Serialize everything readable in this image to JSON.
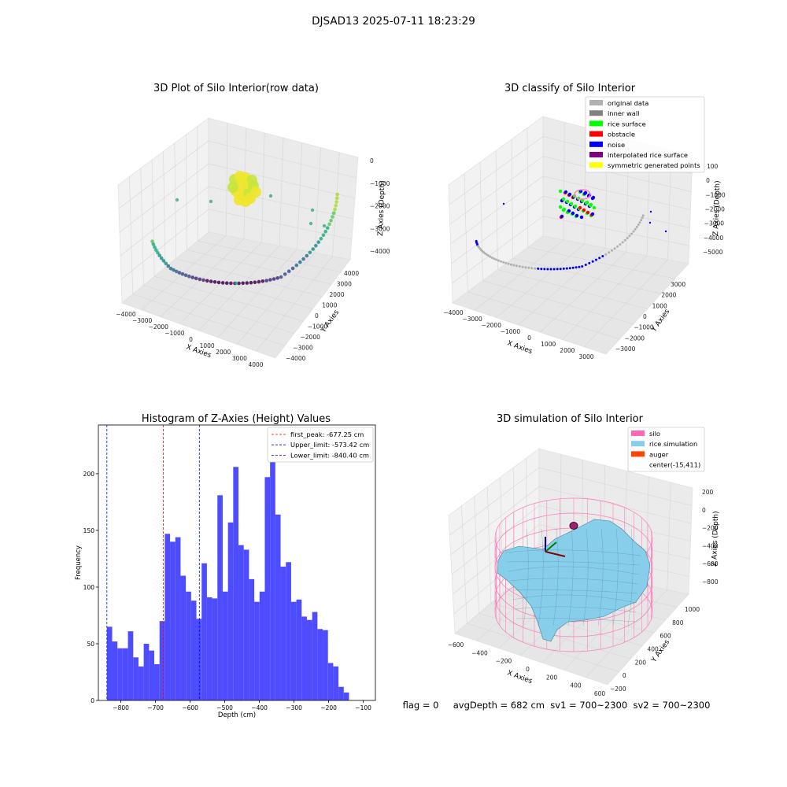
{
  "figure": {
    "suptitle": "DJSAD13 2025-07-11 18:23:29",
    "footer": "flag = 0     avgDepth = 682 cm  sv1 = 700~2300  sv2 = 700~2300"
  },
  "colors": {
    "hist_bar": "#4d4dff",
    "first_peak": "#ff0000",
    "limit_line": "#0000ff",
    "silo_wire": "#ff69b4",
    "rice_surface": "#87ceeb",
    "auger": "#ff4500",
    "original": "#b0b0b0",
    "inner_wall": "#808080",
    "rice_class": "#00ff00",
    "obstacle": "#ff0000",
    "noise": "#0000ff",
    "interpolated": "#800080",
    "symmetric": "#ffff00"
  },
  "chart_data": [
    {
      "type": "scatter",
      "title": "3D Plot of Silo Interior(row data)",
      "xlabel": "X Axies",
      "ylabel": "Y Axies",
      "zlabel": "Z Axies (Depth)",
      "xticks": [
        "−4000",
        "−3000",
        "−2000",
        "−1000",
        "0",
        "1000",
        "2000",
        "3000",
        "4000"
      ],
      "yticks": [
        "−4000",
        "−3000",
        "−2000",
        "−1000",
        "0",
        "1000",
        "2000",
        "3000",
        "4000"
      ],
      "zticks": [
        "0",
        "−1000",
        "−2000",
        "−3000",
        "−4000"
      ],
      "xlim": [
        -4000,
        4000
      ],
      "ylim": [
        -4000,
        4000
      ],
      "zlim": [
        -4500,
        500
      ]
    },
    {
      "type": "scatter",
      "title": "3D classify of Silo Interior",
      "xlabel": "X Axies",
      "ylabel": "Y Axies",
      "zlabel": "Z Axies (Depth)",
      "xticks": [
        "−4000",
        "−3000",
        "−2000",
        "−1000",
        "0",
        "1000",
        "2000",
        "3000"
      ],
      "yticks": [
        "−3000",
        "−2000",
        "−1000",
        "0",
        "1000",
        "2000",
        "3000"
      ],
      "zticks": [
        "100",
        "0",
        "−1000",
        "−2000",
        "−3000",
        "−4000",
        "−5000"
      ],
      "legend": [
        "original data",
        "inner wall",
        "rice surface",
        "obstacle",
        "noise",
        "interpolated rice surface",
        "symmetric generated points"
      ],
      "legend_loc": "top-right"
    },
    {
      "type": "bar",
      "title": "Histogram of Z-Axies (Height) Values",
      "xlabel": "Depth (cm)",
      "ylabel": "Frequency",
      "xlim": [
        -865,
        -65
      ],
      "ylim": [
        0,
        243
      ],
      "xticks": [
        -800,
        -700,
        -600,
        -500,
        -400,
        -300,
        -200,
        -100
      ],
      "xtick_labels": [
        "−800",
        "−700",
        "−600",
        "−500",
        "−400",
        "−300",
        "−200",
        "−100"
      ],
      "yticks": [
        0,
        50,
        100,
        150,
        200
      ],
      "bin_start": -840.4,
      "bin_width": 15.2,
      "values": [
        65,
        52,
        46,
        46,
        61,
        38,
        30,
        50,
        44,
        32,
        70,
        147,
        140,
        144,
        110,
        96,
        88,
        72,
        121,
        91,
        90,
        181,
        96,
        157,
        206,
        137,
        133,
        107,
        87,
        96,
        197,
        236,
        164,
        118,
        122,
        87,
        89,
        74,
        71,
        78,
        63,
        62,
        33,
        30,
        12,
        7
      ],
      "lines": [
        {
          "label": "first_peak: -677.25 cm",
          "x": -677.25,
          "color": "#ff0000"
        },
        {
          "label": "Upper_limit: -573.42 cm",
          "x": -573.42,
          "color": "#0000ff"
        },
        {
          "label": "Lower_limit: -840.40 cm",
          "x": -840.4,
          "color": "#0000ff"
        }
      ],
      "legend_loc": "top-right"
    },
    {
      "type": "surface",
      "title": "3D simulation of Silo Interior",
      "xlabel": "X Axies",
      "ylabel": "Y Axies",
      "zlabel": "Z Axies (Depth)",
      "xticks": [
        "−600",
        "−400",
        "−200",
        "0",
        "200",
        "400",
        "600"
      ],
      "yticks": [
        "−200",
        "0",
        "200",
        "400",
        "600",
        "800",
        "1000"
      ],
      "zticks": [
        "200",
        "0",
        "−200",
        "−400",
        "−600",
        "−800"
      ],
      "legend": [
        "silo",
        "rice simulation",
        "auger",
        "center(-15,411)"
      ],
      "legend_loc": "top-right"
    }
  ]
}
